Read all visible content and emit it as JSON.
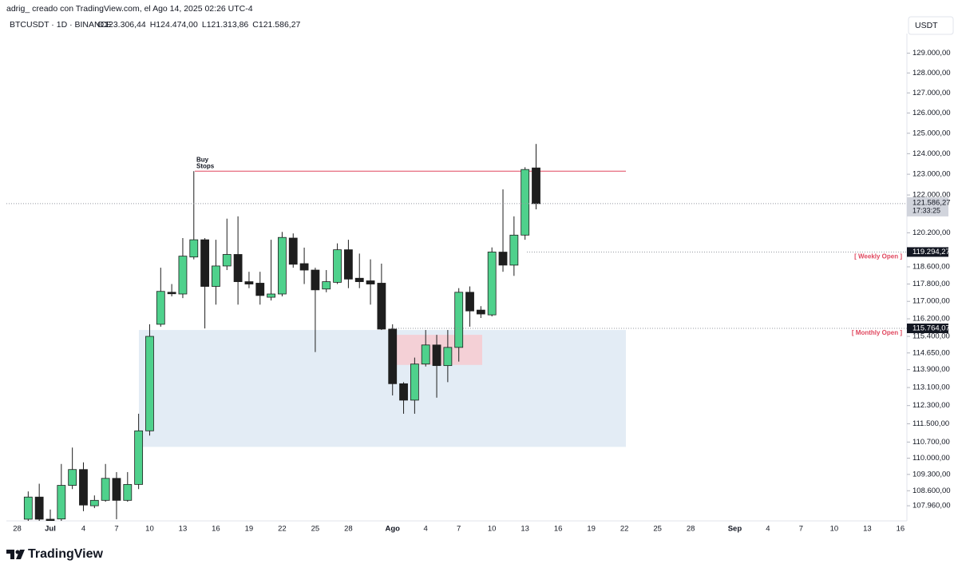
{
  "header": {
    "author_line": "adrig_ creado con TradingView.com, el Ago 14, 2025 02:26 UTC-4",
    "symbol": "BTCUSDT · 1D · BINANCE",
    "ohlc": [
      "O123.306,44",
      "H124.474,00",
      "L121.313,86",
      "C121.586,27"
    ],
    "currency": "USDT"
  },
  "footer": {
    "brand": "TradingView"
  },
  "chart_data": {
    "type": "candlestick",
    "log_scale": true,
    "up_color": "#4fd18c",
    "down_color": "#1e1e1e",
    "open": [
      107390,
      108330,
      107390,
      107400,
      108830,
      109510,
      107960,
      108190,
      109130,
      108190,
      108870,
      111190,
      115950,
      117420,
      117340,
      119060,
      119870,
      117690,
      118640,
      119180,
      117910,
      117840,
      117190,
      117340,
      119950,
      118750,
      118450,
      117570,
      117880,
      119400,
      118070,
      117950,
      117840,
      115730,
      113270,
      112540,
      114150,
      115010,
      114080,
      114900,
      117420,
      116600,
      116380,
      119290,
      118680,
      120090,
      123306.44
    ],
    "high": [
      108570,
      108900,
      107800,
      109750,
      110460,
      109820,
      108400,
      109750,
      109400,
      109400,
      111940,
      115950,
      118560,
      117800,
      119950,
      123150,
      119950,
      119870,
      120870,
      120980,
      118370,
      118370,
      119870,
      120240,
      120170,
      119500,
      118560,
      118450,
      119700,
      119870,
      119220,
      118950,
      118750,
      115950,
      113340,
      114440,
      115690,
      115470,
      115690,
      117610,
      117690,
      116780,
      119510,
      122270,
      120980,
      123340,
      124474
    ],
    "low": [
      107220,
      107220,
      106900,
      107220,
      108670,
      107730,
      107860,
      108130,
      107390,
      108130,
      108670,
      110980,
      115840,
      117230,
      117150,
      118950,
      115760,
      116850,
      118450,
      116850,
      117610,
      116850,
      117040,
      117230,
      118560,
      117800,
      114690,
      117420,
      117800,
      117610,
      117610,
      116850,
      115690,
      112750,
      111940,
      111940,
      114040,
      112650,
      113340,
      114260,
      115840,
      116240,
      116310,
      118370,
      118180,
      119870,
      121313.86
    ],
    "close": [
      108330,
      107390,
      107100,
      108830,
      109510,
      107990,
      108190,
      109130,
      108190,
      108870,
      111190,
      115400,
      117460,
      117350,
      119100,
      119870,
      117690,
      118640,
      119180,
      117910,
      117800,
      117270,
      117340,
      119980,
      118720,
      118450,
      117530,
      117910,
      119400,
      118030,
      117910,
      117800,
      115730,
      113270,
      112540,
      114150,
      115010,
      114080,
      114900,
      117420,
      116560,
      116420,
      119294,
      118680,
      120090,
      123230,
      121586.27
    ],
    "x_labels": [
      "28",
      "Jul",
      "4",
      "7",
      "10",
      "13",
      "16",
      "19",
      "22",
      "25",
      "28",
      "Ago",
      "4",
      "7",
      "10",
      "13",
      "16",
      "19",
      "22",
      "25",
      "28",
      "Sep",
      "4",
      "7",
      "10",
      "13",
      "16"
    ],
    "ylim": [
      107320,
      130000
    ],
    "yticks": [
      {
        "value": 129000,
        "label": "129.000,00"
      },
      {
        "value": 128000,
        "label": "128.000,00"
      },
      {
        "value": 127000,
        "label": "127.000,00"
      },
      {
        "value": 126000,
        "label": "126.000,00"
      },
      {
        "value": 125000,
        "label": "125.000,00"
      },
      {
        "value": 124000,
        "label": "124.000,00"
      },
      {
        "value": 123000,
        "label": "123.000,00"
      },
      {
        "value": 122000,
        "label": "122.000,00"
      },
      {
        "value": 120200,
        "label": "120.200,00"
      },
      {
        "value": 118600,
        "label": "118.600,00"
      },
      {
        "value": 117800,
        "label": "117.800,00"
      },
      {
        "value": 117000,
        "label": "117.000,00"
      },
      {
        "value": 116200,
        "label": "116.200,00"
      },
      {
        "value": 115400,
        "label": "115.400,00"
      },
      {
        "value": 114650,
        "label": "114.650,00"
      },
      {
        "value": 113900,
        "label": "113.900,00"
      },
      {
        "value": 113100,
        "label": "113.100,00"
      },
      {
        "value": 112300,
        "label": "112.300,00"
      },
      {
        "value": 111500,
        "label": "111.500,00"
      },
      {
        "value": 110700,
        "label": "110.700,00"
      },
      {
        "value": 110000,
        "label": "110.000,00"
      },
      {
        "value": 109300,
        "label": "109.300,00"
      },
      {
        "value": 108600,
        "label": "108.600,00"
      },
      {
        "value": 107960,
        "label": "107.960,00"
      }
    ],
    "zones": [
      {
        "from": 115690,
        "to": 110490,
        "color": "#e3ecf5"
      },
      {
        "from": 115470,
        "to": 114110,
        "color": "#f4d0d6"
      }
    ],
    "buy_stops": {
      "label_lines": [
        "Buy",
        "Stops"
      ],
      "value": 123150,
      "color": "#e0475e"
    },
    "last_price": {
      "value": 121586.27,
      "label": "121.586,27",
      "countdown": "17:33:25"
    },
    "weekly_open": {
      "label": "[ Weekly Open ]",
      "value": 119294.27,
      "value_label": "119.294,27",
      "color": "#e0475e"
    },
    "monthly_open": {
      "label": "[ Monthly Open ]",
      "value": 115764.07,
      "value_label": "115.764,07",
      "color": "#e0475e"
    }
  }
}
